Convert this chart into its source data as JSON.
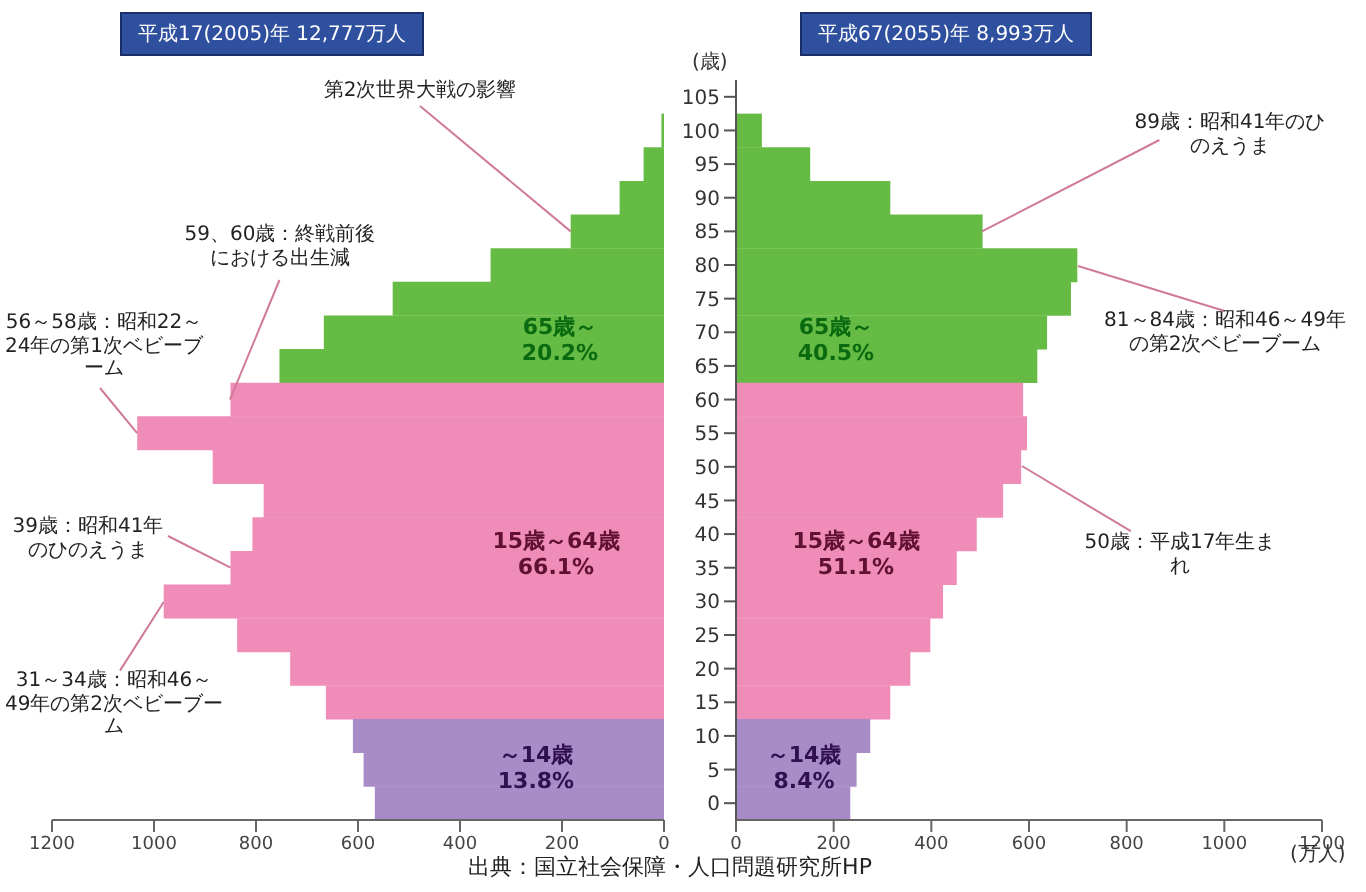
{
  "chart_data": [
    {
      "type": "bar",
      "orientation": "horizontal",
      "title": "平成17(2005)年 12,777万人",
      "categories": [
        "105",
        "100",
        "95",
        "90",
        "85",
        "80",
        "75",
        "70",
        "65",
        "60",
        "55",
        "50",
        "45",
        "40",
        "35",
        "30",
        "25",
        "20",
        "15",
        "10",
        "5",
        "0"
      ],
      "values": [
        0,
        5,
        40,
        87,
        183,
        340,
        532,
        667,
        754,
        850,
        1033,
        885,
        785,
        807,
        850,
        981,
        837,
        733,
        663,
        610,
        589,
        567
      ],
      "colors": [
        "#66bb44",
        "#66bb44",
        "#66bb44",
        "#66bb44",
        "#66bb44",
        "#66bb44",
        "#66bb44",
        "#66bb44",
        "#66bb44",
        "#f08cb8",
        "#f08cb8",
        "#f08cb8",
        "#f08cb8",
        "#f08cb8",
        "#f08cb8",
        "#f08cb8",
        "#f08cb8",
        "#f08cb8",
        "#f08cb8",
        "#a88cc8",
        "#a88cc8",
        "#a88cc8"
      ],
      "xlim": [
        1200,
        0
      ],
      "xticks": [
        1200,
        1000,
        800,
        600,
        400,
        200,
        0
      ],
      "tick_labels": "x",
      "annotations": [
        {
          "text": "第2次世界大戦の影響",
          "x": 183,
          "y": "85"
        },
        {
          "text": "59、60歳：終戦前後における出生減",
          "x": 850,
          "y": "60"
        },
        {
          "text": "56～58歳：昭和22～24年の第1次ベビーブーム",
          "x": 1033,
          "y": "55"
        },
        {
          "text": "39歳：昭和41年のひのえうま",
          "x": 850,
          "y": "35"
        },
        {
          "text": "31～34歳：昭和46～49年の第2次ベビーブーム",
          "x": 981,
          "y": "30"
        },
        "65歳～ 20.2%",
        "15歳～64歳 66.1%",
        "～14歳 13.8%",
        "出典：国立社会保障・人口問題研究所HP"
      ]
    },
    {
      "type": "bar",
      "orientation": "horizontal",
      "title": "平成67(2055)年 8,993万人",
      "ylabel": "(歳)",
      "xlabel": "(万人)",
      "categories": [
        "105",
        "100",
        "95",
        "90",
        "85",
        "80",
        "75",
        "70",
        "65",
        "60",
        "55",
        "50",
        "45",
        "40",
        "35",
        "30",
        "25",
        "20",
        "15",
        "10",
        "5",
        "0"
      ],
      "values": [
        0,
        53,
        152,
        316,
        505,
        699,
        686,
        637,
        617,
        588,
        596,
        584,
        547,
        493,
        452,
        424,
        398,
        357,
        316,
        275,
        247,
        234
      ],
      "colors": [
        "#66bb44",
        "#66bb44",
        "#66bb44",
        "#66bb44",
        "#66bb44",
        "#66bb44",
        "#66bb44",
        "#66bb44",
        "#66bb44",
        "#f08cb8",
        "#f08cb8",
        "#f08cb8",
        "#f08cb8",
        "#f08cb8",
        "#f08cb8",
        "#f08cb8",
        "#f08cb8",
        "#f08cb8",
        "#f08cb8",
        "#a88cc8",
        "#a88cc8",
        "#a88cc8"
      ],
      "xlim": [
        0,
        1200
      ],
      "xticks": [
        0,
        200,
        400,
        600,
        800,
        1000,
        1200
      ],
      "annotations": [
        {
          "text": "89歳：昭和41年のひのえうま",
          "x": 505,
          "y": "85"
        },
        {
          "text": "81～84歳：昭和46～49年の第2次ベビーブーム",
          "x": 699,
          "y": "80"
        },
        {
          "text": "50歳：平成17年生まれ",
          "x": 584,
          "y": "50"
        },
        "65歳～ 40.5%",
        "15歳～64歳 51.1%",
        "～14歳 8.4%"
      ]
    }
  ]
}
